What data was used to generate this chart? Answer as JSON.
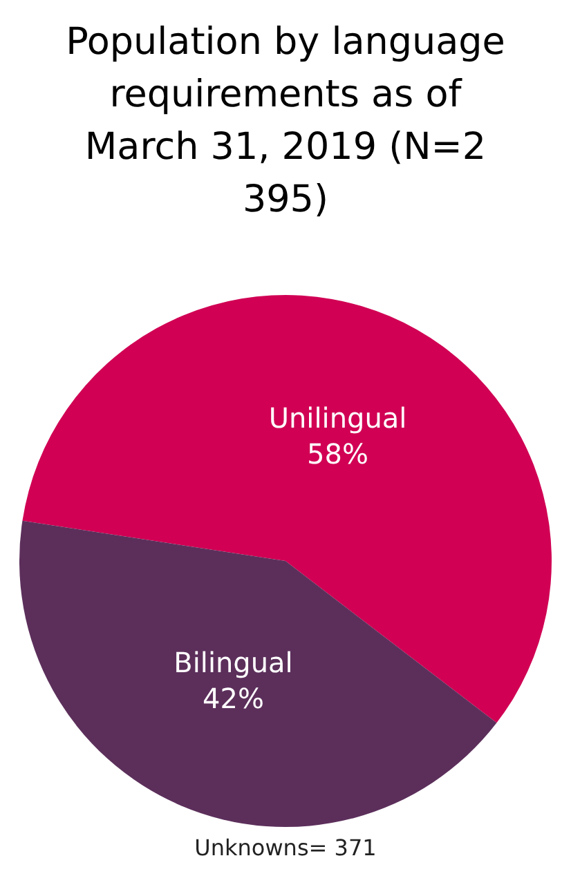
{
  "chart_data": {
    "type": "pie",
    "title": "Population by language requirements as of March 31, 2019 (N=2 395)",
    "categories": [
      "Unilingual",
      "Bilingual"
    ],
    "values": [
      58,
      42
    ],
    "colors": [
      "#d10054",
      "#5c2f5b"
    ],
    "value_labels": [
      "58%",
      "42%"
    ],
    "annotations": [
      "Unknowns= 371"
    ],
    "legend": false
  }
}
